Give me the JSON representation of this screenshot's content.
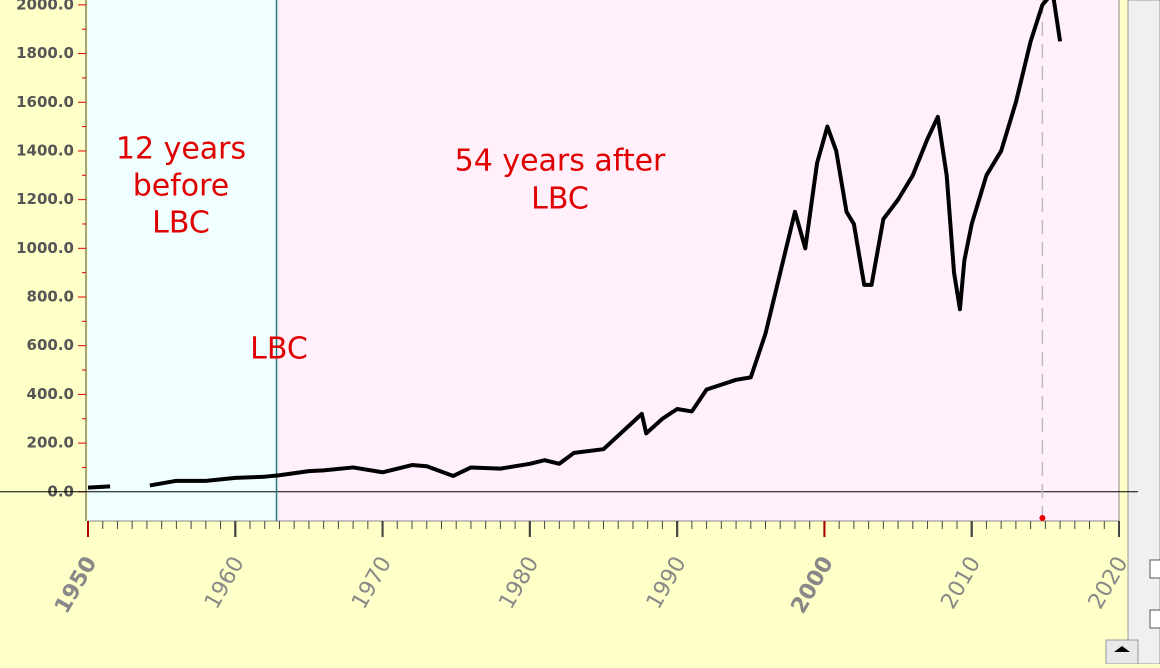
{
  "chart_data": {
    "type": "line",
    "x": [
      1950,
      1951.5,
      1953,
      1954.2,
      1956,
      1958,
      1960,
      1962,
      1963,
      1965,
      1966,
      1968,
      1970,
      1972,
      1973,
      1974.8,
      1976,
      1978,
      1980,
      1981,
      1982,
      1983,
      1985,
      1987.6,
      1987.9,
      1989,
      1990,
      1991,
      1992,
      1994,
      1995,
      1996,
      1997,
      1998,
      1998.7,
      1999.5,
      2000.2,
      2000.8,
      2001.5,
      2002,
      2002.7,
      2003.2,
      2004,
      2005,
      2006,
      2007,
      2007.7,
      2008.3,
      2008.8,
      2009.2,
      2009.5,
      2010,
      2011,
      2012,
      2013,
      2014,
      2014.8,
      2015.5,
      2016
    ],
    "series": [
      {
        "color": "#000000",
        "values": [
          17,
          22,
          null,
          26,
          45,
          45,
          57,
          62,
          68,
          85,
          88,
          100,
          80,
          110,
          105,
          65,
          100,
          95,
          115,
          130,
          115,
          160,
          175,
          320,
          240,
          300,
          340,
          330,
          420,
          460,
          470,
          650,
          900,
          1150,
          1000,
          1350,
          1500,
          1400,
          1150,
          1100,
          850,
          850,
          1120,
          1200,
          1300,
          1450,
          1540,
          1300,
          900,
          750,
          950,
          1100,
          1300,
          1400,
          1600,
          1850,
          2000,
          2050,
          1850
        ]
      }
    ],
    "xlim": [
      1950,
      2020
    ],
    "xticks": [
      1950,
      1960,
      1970,
      1980,
      1990,
      2000,
      2010,
      2020
    ],
    "xticks_highlight": [
      1950,
      2000
    ],
    "ylim": [
      -120,
      2020
    ],
    "yticks": [
      {
        "value": 0,
        "label": "0.0"
      },
      {
        "value": 200,
        "label": "200.0"
      },
      {
        "value": 400,
        "label": "400.0"
      },
      {
        "value": 600,
        "label": "600.0"
      },
      {
        "value": 800,
        "label": "800.0"
      },
      {
        "value": 1000,
        "label": "1000.0"
      },
      {
        "value": 1200,
        "label": "1200.0"
      },
      {
        "value": 1400,
        "label": "1400.0"
      },
      {
        "value": 1600,
        "label": "1600.0"
      },
      {
        "value": 1800,
        "label": "1800.0"
      },
      {
        "value": 2000,
        "label": "2000.0"
      }
    ],
    "regions": [
      {
        "from": 1950,
        "to": 1962.8,
        "color": "#f0ffff"
      },
      {
        "from": 1962.8,
        "to": 2020,
        "color": "#fff0fc"
      }
    ],
    "vlines": [
      {
        "x": 1962.8,
        "color": "#2a7a7a",
        "dashed": false
      },
      {
        "x": 2014.8,
        "color": "#bbbbbb",
        "dashed": true
      }
    ],
    "annotations": [
      {
        "lines": [
          "12 years",
          "before",
          "LBC"
        ]
      },
      {
        "lines": [
          "54 years after",
          "LBC"
        ]
      },
      {
        "lines": [
          "LBC"
        ]
      }
    ]
  }
}
